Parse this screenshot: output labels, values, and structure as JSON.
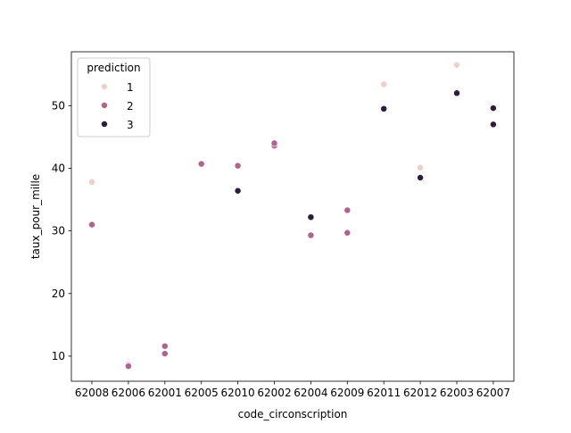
{
  "chart_data": {
    "type": "scatter",
    "xlabel": "code_circonscription",
    "ylabel": "taux_pour_mille",
    "categories": [
      "62008",
      "62006",
      "62001",
      "62005",
      "62010",
      "62002",
      "62004",
      "62009",
      "62011",
      "62012",
      "62003",
      "62007"
    ],
    "ylim": [
      6.0,
      58.6
    ],
    "yticks": [
      10,
      20,
      30,
      40,
      50
    ],
    "grid": false,
    "legend": {
      "title": "prediction",
      "placement": "top-left",
      "entries": [
        {
          "label": "1",
          "color": "#ecd0ca"
        },
        {
          "label": "2",
          "color": "#b0648d"
        },
        {
          "label": "3",
          "color": "#2d1d3d"
        }
      ]
    },
    "series": [
      {
        "name": "1",
        "color": "#ecd0ca",
        "points": [
          {
            "x": "62008",
            "y": 37.8
          },
          {
            "x": "62006",
            "y": 8.7
          },
          {
            "x": "62011",
            "y": 53.4
          },
          {
            "x": "62012",
            "y": 40.1
          },
          {
            "x": "62003",
            "y": 56.5
          }
        ]
      },
      {
        "name": "2",
        "color": "#b0648d",
        "points": [
          {
            "x": "62008",
            "y": 31.0
          },
          {
            "x": "62006",
            "y": 8.4
          },
          {
            "x": "62001",
            "y": 11.6
          },
          {
            "x": "62001",
            "y": 10.4
          },
          {
            "x": "62005",
            "y": 40.7
          },
          {
            "x": "62010",
            "y": 40.4
          },
          {
            "x": "62002",
            "y": 43.6
          },
          {
            "x": "62002",
            "y": 44.0
          },
          {
            "x": "62004",
            "y": 29.3
          },
          {
            "x": "62009",
            "y": 33.3
          },
          {
            "x": "62009",
            "y": 29.7
          }
        ]
      },
      {
        "name": "3",
        "color": "#2d1d3d",
        "points": [
          {
            "x": "62010",
            "y": 36.4
          },
          {
            "x": "62004",
            "y": 32.2
          },
          {
            "x": "62011",
            "y": 49.5
          },
          {
            "x": "62012",
            "y": 38.5
          },
          {
            "x": "62003",
            "y": 52.0
          },
          {
            "x": "62007",
            "y": 49.6
          },
          {
            "x": "62007",
            "y": 47.0
          }
        ]
      }
    ]
  }
}
